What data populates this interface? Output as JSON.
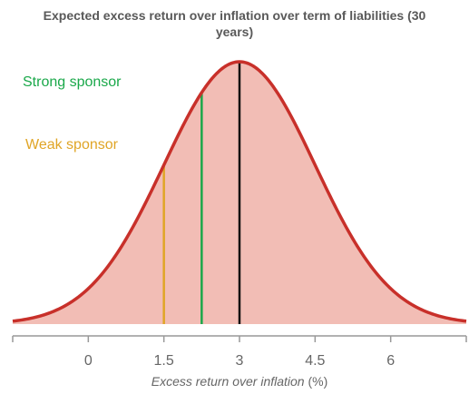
{
  "chart_data": {
    "type": "distribution",
    "title": "Expected excess return over inflation over term of liabilities (30 years)",
    "xlabel": "Excess return over inflation",
    "xlabel_unit": "(%)",
    "distribution": {
      "mean": 3,
      "sd": 1.5,
      "color": "#c8302a",
      "fill": "#f2bdb5"
    },
    "mean_line_color": "#111111",
    "markers": [
      {
        "name": "Strong sponsor",
        "x": 2.25,
        "color": "#1aa84a"
      },
      {
        "name": "Weak sponsor",
        "x": 1.5,
        "color": "#e0a526"
      }
    ],
    "xlim": [
      -1.5,
      7.5
    ],
    "xticks": [
      0,
      1.5,
      3,
      4.5,
      6
    ]
  }
}
